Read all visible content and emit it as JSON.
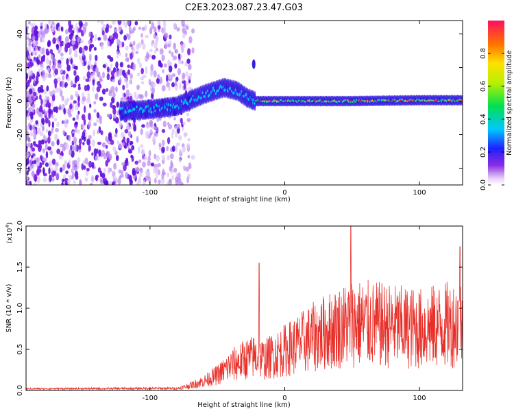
{
  "title": "C2E3.2023.087.23.47.G03",
  "top_xlabel": "Height of straight line (km)",
  "top_ylabel": "Frequency (Hz)",
  "colorbar_label": "Normalized spectral amplitude",
  "bottom_xlabel": "Height of straight line (km)",
  "bottom_ylabel": "SNR (10 * v/v)",
  "bottom_scale_note": "(x10",
  "bottom_scale_exp": "4",
  "bottom_scale_close": ")",
  "colors": {
    "snr_line": "#e8302a",
    "frame": "#000000"
  },
  "chart_data": [
    {
      "type": "heatmap",
      "xlabel": "Height of straight line (km)",
      "ylabel": "Frequency (Hz)",
      "xlim": [
        -192,
        132
      ],
      "ylim": [
        -50,
        48
      ],
      "xticks": [
        -100,
        0,
        100
      ],
      "yticks": [
        -40,
        -20,
        0,
        20,
        40
      ],
      "colorbar": {
        "label": "Normalized spectral amplitude",
        "range": [
          0,
          1
        ],
        "ticks": [
          0.0,
          0.2,
          0.4,
          0.6,
          0.8
        ]
      },
      "ridge": {
        "x": [
          -120,
          -100,
          -80,
          -60,
          -45,
          -35,
          -28,
          -22,
          0,
          50,
          100,
          132
        ],
        "freq_hz": [
          -6,
          -5,
          -3,
          4,
          8,
          6,
          2,
          0,
          0,
          0,
          0.5,
          0.5
        ]
      },
      "stray_blob": {
        "x": -23,
        "freq_hz": 22
      }
    },
    {
      "type": "line",
      "xlabel": "Height of straight line (km)",
      "ylabel": "SNR (10 * v/v)",
      "xlim": [
        -192,
        132
      ],
      "ylim": [
        0,
        2.0
      ],
      "y_multiplier": "x10^4",
      "xticks": [
        -100,
        0,
        100
      ],
      "yticks": [
        0.0,
        0.5,
        1.0,
        1.5,
        2.0
      ],
      "envelope": {
        "x": [
          -192,
          -80,
          -70,
          -60,
          -50,
          -40,
          -30,
          -22,
          -15,
          0,
          25,
          50,
          75,
          100,
          132
        ],
        "y": [
          0.02,
          0.03,
          0.08,
          0.15,
          0.25,
          0.4,
          0.5,
          0.55,
          0.5,
          0.65,
          0.9,
          1.1,
          1.05,
          1.0,
          1.1
        ]
      },
      "peaks": [
        {
          "x": -19,
          "y": 1.55
        },
        {
          "x": 49,
          "y": 2.0
        },
        {
          "x": 130,
          "y": 1.75
        }
      ]
    }
  ]
}
